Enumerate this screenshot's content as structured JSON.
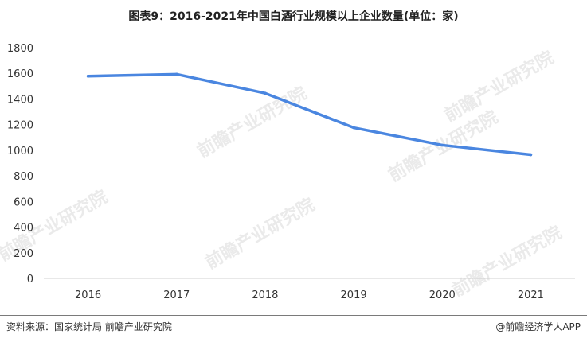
{
  "chart_data": {
    "type": "line",
    "title": "图表9：2016-2021年中国白酒行业规模以上企业数量(单位：家)",
    "categories": [
      "2016",
      "2017",
      "2018",
      "2019",
      "2020",
      "2021"
    ],
    "series": [
      {
        "values": [
          1578,
          1593,
          1445,
          1176,
          1040,
          965
        ]
      }
    ],
    "ylim": [
      0,
      1800
    ],
    "yticks": [
      0,
      200,
      400,
      600,
      800,
      1000,
      1200,
      1400,
      1600,
      1800
    ],
    "xlabel": "",
    "ylabel": "",
    "grid": false,
    "legend": "none",
    "line_color": "#4a86e0"
  },
  "footer": {
    "source": "资料来源：国家统计局 前瞻产业研究院",
    "publisher": "@前瞻经济学人APP"
  },
  "watermark": {
    "text": "前瞻产业研究院"
  }
}
